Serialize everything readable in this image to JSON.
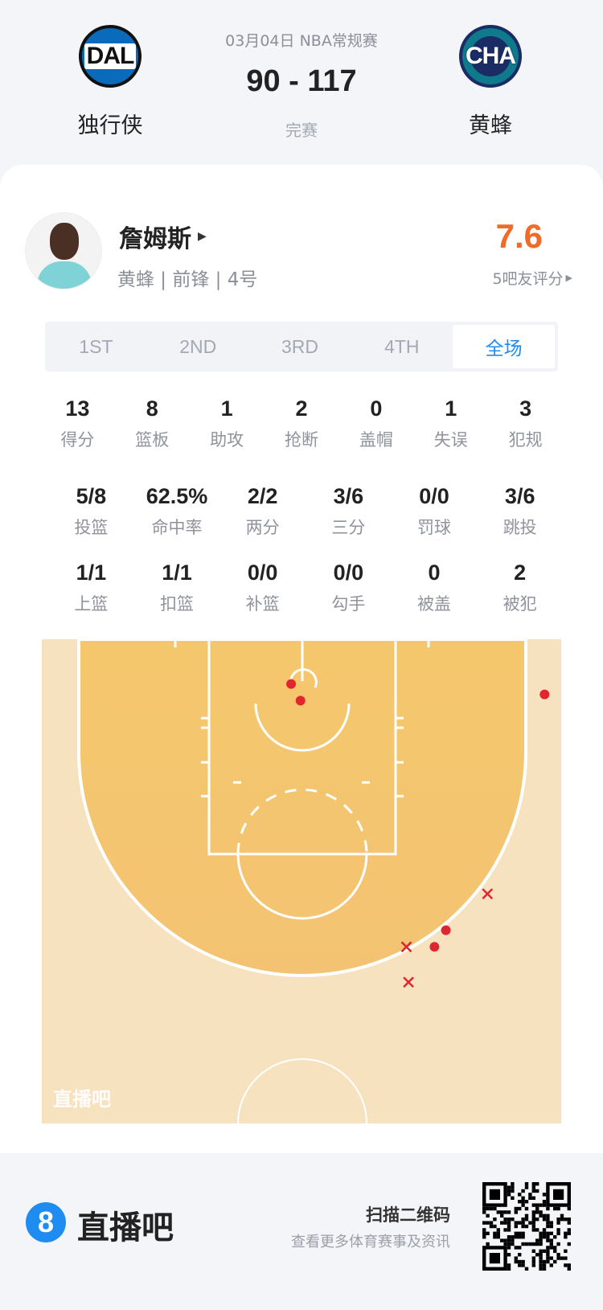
{
  "header": {
    "date_league": "03月04日 NBA常规赛",
    "score": "90 - 117",
    "status": "完赛",
    "home": {
      "abbr": "DAL",
      "name": "独行侠",
      "color": "#0a6bbd"
    },
    "away": {
      "abbr": "CHA",
      "name": "黄蜂",
      "color": "#0e7a8c"
    }
  },
  "player": {
    "name": "詹姆斯",
    "subtitle": "黄蜂 | 前锋 | 4号",
    "rating": "7.6",
    "rating_label": "5吧友评分",
    "rating_color": "#f06a28"
  },
  "tabs": [
    {
      "label": "1ST"
    },
    {
      "label": "2ND"
    },
    {
      "label": "3RD"
    },
    {
      "label": "4TH"
    },
    {
      "label": "全场",
      "active": true
    }
  ],
  "stats_row1": [
    {
      "value": "13",
      "label": "得分"
    },
    {
      "value": "8",
      "label": "篮板"
    },
    {
      "value": "1",
      "label": "助攻"
    },
    {
      "value": "2",
      "label": "抢断"
    },
    {
      "value": "0",
      "label": "盖帽"
    },
    {
      "value": "1",
      "label": "失误"
    },
    {
      "value": "3",
      "label": "犯规"
    }
  ],
  "stats_row2": [
    {
      "value": "5/8",
      "label": "投篮"
    },
    {
      "value": "62.5%",
      "label": "命中率"
    },
    {
      "value": "2/2",
      "label": "两分"
    },
    {
      "value": "3/6",
      "label": "三分"
    },
    {
      "value": "0/0",
      "label": "罚球"
    },
    {
      "value": "3/6",
      "label": "跳投"
    }
  ],
  "stats_row3": [
    {
      "value": "1/1",
      "label": "上篮"
    },
    {
      "value": "1/1",
      "label": "扣篮"
    },
    {
      "value": "0/0",
      "label": "补篮"
    },
    {
      "value": "0/0",
      "label": "勾手"
    },
    {
      "value": "0",
      "label": "被盖"
    },
    {
      "value": "2",
      "label": "被犯"
    }
  ],
  "shot_chart": {
    "watermark": "直播吧",
    "units": "feet (x from center, y from baseline)",
    "shots": [
      {
        "x": -1.0,
        "y": 4.3,
        "made": true
      },
      {
        "x": -0.1,
        "y": 5.9,
        "made": true
      },
      {
        "x": 23.4,
        "y": 5.3,
        "made": true
      },
      {
        "x": 13.9,
        "y": 28.0,
        "made": true
      },
      {
        "x": 12.8,
        "y": 29.6,
        "made": true
      },
      {
        "x": 17.9,
        "y": 24.5,
        "made": false
      },
      {
        "x": 10.1,
        "y": 29.6,
        "made": false
      },
      {
        "x": 10.3,
        "y": 33.0,
        "made": false
      }
    ],
    "colors": {
      "paint": "#f4c46c",
      "outside": "#f7e2bf",
      "marker": "#e0262e"
    }
  },
  "footer": {
    "brand": "直播吧",
    "scan": "扫描二维码",
    "more": "查看更多体育赛事及资讯"
  }
}
